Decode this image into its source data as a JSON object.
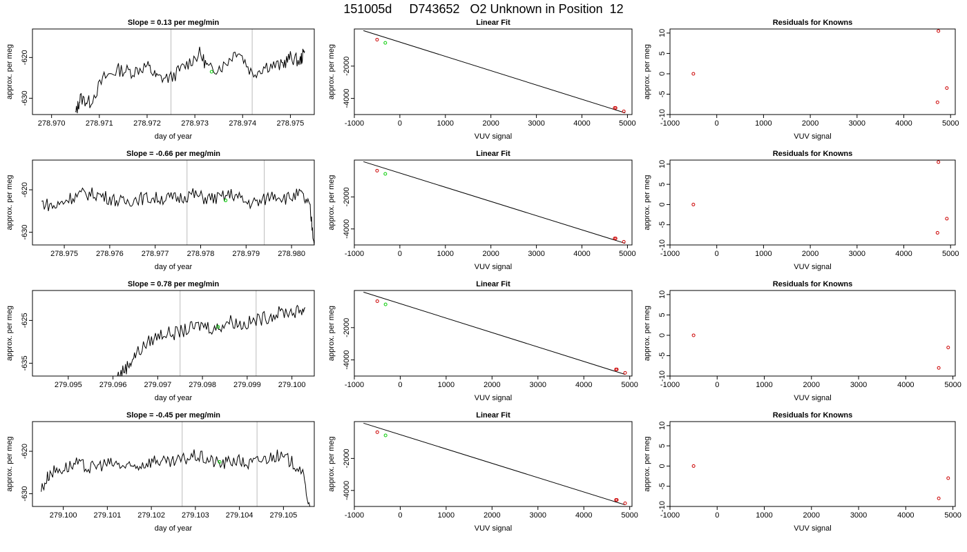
{
  "title": "151005d     D743652   O2 Unknown in Position  12",
  "labels": {
    "xlabel_time": "day of year",
    "ylabel": "approx. per meg",
    "linear_fit_title": "Linear Fit",
    "residuals_title": "Residuals for Knowns",
    "xlabel_vuv": "VUV signal"
  },
  "colors": {
    "trace": "#000000",
    "marker_known": "#cc0000",
    "marker_unknown": "#00cc00",
    "vline": "#bbbbbb",
    "frame": "#000000"
  },
  "chart_data": [
    {
      "type": "line",
      "title": "Slope =  0.13  per meg/min",
      "xlabel": "day of year",
      "ylabel": "approx. per meg",
      "xlim": [
        278.9696,
        278.9755
      ],
      "ylim": [
        -634,
        -613
      ],
      "xticks": [
        "278.970",
        "278.971",
        "278.972",
        "278.973",
        "278.974",
        "278.975"
      ],
      "xtick_values": [
        278.97,
        278.971,
        278.972,
        278.973,
        278.974,
        278.975
      ],
      "yticks": [
        "-630",
        "-620"
      ],
      "ytick_values": [
        -630,
        -620
      ],
      "vlines": [
        278.9725,
        278.9742
      ],
      "series": [
        {
          "x": [
            278.9705,
            278.9706,
            278.9708,
            278.9711,
            278.9714,
            278.9717,
            278.972,
            278.9722,
            278.9725,
            278.9728,
            278.9731,
            278.9733,
            278.9736,
            278.9739,
            278.9742,
            278.9745,
            278.9748,
            278.975,
            278.9752,
            278.9753
          ],
          "y": [
            -634,
            -630,
            -631,
            -625,
            -623,
            -623.5,
            -622,
            -625,
            -625,
            -622,
            -619,
            -623,
            -622,
            -618,
            -624,
            -622,
            -622,
            -620,
            -621,
            -618.5
          ]
        }
      ],
      "unknown_point": {
        "x": 278.97335,
        "y": -623.5
      }
    },
    {
      "type": "line",
      "title": "Slope =  -0.66  per meg/min",
      "xlabel": "day of year",
      "ylabel": "approx. per meg",
      "xlim": [
        278.9743,
        278.9805
      ],
      "ylim": [
        -633,
        -613
      ],
      "xticks": [
        "278.975",
        "278.976",
        "278.977",
        "278.978",
        "278.979",
        "278.980"
      ],
      "xtick_values": [
        278.975,
        278.976,
        278.977,
        278.978,
        278.979,
        278.98
      ],
      "yticks": [
        "-630",
        "-620"
      ],
      "ytick_values": [
        -630,
        -620
      ],
      "vlines": [
        278.9777,
        278.9794
      ],
      "series": [
        {
          "x": [
            278.9745,
            278.9748,
            278.9751,
            278.9754,
            278.9757,
            278.976,
            278.9763,
            278.9766,
            278.9769,
            278.9772,
            278.9775,
            278.9778,
            278.9781,
            278.9784,
            278.9787,
            278.979,
            278.9793,
            278.9796,
            278.9799,
            278.9802,
            278.9804,
            278.9805
          ],
          "y": [
            -623,
            -624,
            -622,
            -621,
            -621,
            -622,
            -623,
            -622,
            -622,
            -622,
            -622,
            -621,
            -622,
            -622,
            -621,
            -623,
            -623,
            -621,
            -622,
            -621,
            -624,
            -633
          ]
        }
      ],
      "unknown_point": {
        "x": 278.97855,
        "y": -622.5
      }
    },
    {
      "type": "line",
      "title": "Slope =  0.78  per meg/min",
      "xlabel": "day of year",
      "ylabel": "approx. per meg",
      "xlim": [
        279.0942,
        279.1005
      ],
      "ylim": [
        -638,
        -618
      ],
      "xticks": [
        "279.095",
        "279.096",
        "279.097",
        "279.098",
        "279.099",
        "279.100"
      ],
      "xtick_values": [
        279.095,
        279.096,
        279.097,
        279.098,
        279.099,
        279.1
      ],
      "yticks": [
        "-635",
        "-625"
      ],
      "ytick_values": [
        -635,
        -625
      ],
      "vlines": [
        279.0975,
        279.0992
      ],
      "series": [
        {
          "x": [
            279.0961,
            279.0963,
            279.0965,
            279.0968,
            279.0971,
            279.0974,
            279.0977,
            279.098,
            279.0983,
            279.0986,
            279.0989,
            279.0992,
            279.0995,
            279.0998,
            279.1001,
            279.1003
          ],
          "y": [
            -638,
            -636,
            -633,
            -630,
            -628,
            -628,
            -627,
            -626,
            -627,
            -625,
            -626,
            -625,
            -624,
            -623,
            -623,
            -622
          ]
        }
      ],
      "unknown_point": {
        "x": 279.09835,
        "y": -626.5
      }
    },
    {
      "type": "line",
      "title": "Slope =  -0.45  per meg/min",
      "xlabel": "day of year",
      "ylabel": "approx. per meg",
      "xlim": [
        279.0993,
        279.1057
      ],
      "ylim": [
        -633,
        -613
      ],
      "xticks": [
        "279.100",
        "279.101",
        "279.102",
        "279.103",
        "279.104",
        "279.105"
      ],
      "xtick_values": [
        279.1,
        279.101,
        279.102,
        279.103,
        279.104,
        279.105
      ],
      "yticks": [
        "-630",
        "-620"
      ],
      "ytick_values": [
        -630,
        -620
      ],
      "vlines": [
        279.1027,
        279.1044
      ],
      "series": [
        {
          "x": [
            279.0995,
            279.0997,
            279.1,
            279.1003,
            279.1006,
            279.1009,
            279.1012,
            279.1015,
            279.1018,
            279.1021,
            279.1024,
            279.1027,
            279.103,
            279.1033,
            279.1036,
            279.1039,
            279.1042,
            279.1045,
            279.1048,
            279.1051,
            279.1054,
            279.1056
          ],
          "y": [
            -629,
            -625,
            -624,
            -623,
            -624,
            -623,
            -623,
            -624,
            -623,
            -622,
            -623,
            -622,
            -621,
            -622,
            -623,
            -622,
            -623,
            -622,
            -621,
            -622,
            -624,
            -633
          ]
        }
      ],
      "unknown_point": {
        "x": 279.10355,
        "y": -622.5
      }
    },
    {
      "type": "scatter",
      "title": "Linear Fit",
      "xlabel": "VUV signal",
      "ylabel": "approx. per meg",
      "xlim": [
        -1000,
        5100
      ],
      "ylim": [
        -5000,
        300
      ],
      "xticks": [
        "-1000",
        "0",
        "1000",
        "2000",
        "3000",
        "4000",
        "5000"
      ],
      "xtick_values": [
        -1000,
        0,
        1000,
        2000,
        3000,
        4000,
        5000
      ],
      "yticks": [
        "-4000",
        "-2000"
      ],
      "ytick_values": [
        -4000,
        -2000
      ],
      "fit_line": {
        "x": [
          -800,
          4950
        ],
        "y": [
          200,
          -4900
        ]
      },
      "known_points": {
        "x": [
          -500,
          4720,
          4740,
          4920
        ],
        "y": [
          -360,
          -4590,
          -4590,
          -4800
        ]
      },
      "unknown_points": {
        "x": [
          -320
        ],
        "y": [
          -560
        ]
      }
    },
    {
      "type": "scatter",
      "title": "Linear Fit",
      "xlabel": "VUV signal",
      "ylabel": "approx. per meg",
      "xlim": [
        -1000,
        5100
      ],
      "ylim": [
        -5000,
        300
      ],
      "xticks": [
        "-1000",
        "0",
        "1000",
        "2000",
        "3000",
        "4000",
        "5000"
      ],
      "xtick_values": [
        -1000,
        0,
        1000,
        2000,
        3000,
        4000,
        5000
      ],
      "yticks": [
        "-4000",
        "-2000"
      ],
      "ytick_values": [
        -4000,
        -2000
      ],
      "fit_line": {
        "x": [
          -800,
          4950
        ],
        "y": [
          200,
          -4900
        ]
      },
      "known_points": {
        "x": [
          -500,
          4720,
          4740,
          4920
        ],
        "y": [
          -360,
          -4590,
          -4590,
          -4800
        ]
      },
      "unknown_points": {
        "x": [
          -320
        ],
        "y": [
          -560
        ]
      }
    },
    {
      "type": "scatter",
      "title": "Linear Fit",
      "xlabel": "VUV signal",
      "ylabel": "approx. per meg",
      "xlim": [
        -1000,
        5050
      ],
      "ylim": [
        -5000,
        300
      ],
      "xticks": [
        "-1000",
        "0",
        "1000",
        "2000",
        "3000",
        "4000",
        "5000"
      ],
      "xtick_values": [
        -1000,
        0,
        1000,
        2000,
        3000,
        4000,
        5000
      ],
      "yticks": [
        "-4000",
        "-2000"
      ],
      "ytick_values": [
        -4000,
        -2000
      ],
      "fit_line": {
        "x": [
          -800,
          4900
        ],
        "y": [
          200,
          -4900
        ]
      },
      "known_points": {
        "x": [
          -500,
          4700,
          4720,
          4900
        ],
        "y": [
          -360,
          -4590,
          -4590,
          -4800
        ]
      },
      "unknown_points": {
        "x": [
          -320
        ],
        "y": [
          -560
        ]
      }
    },
    {
      "type": "scatter",
      "title": "Linear Fit",
      "xlabel": "VUV signal",
      "ylabel": "approx. per meg",
      "xlim": [
        -1000,
        5050
      ],
      "ylim": [
        -5000,
        300
      ],
      "xticks": [
        "-1000",
        "0",
        "1000",
        "2000",
        "3000",
        "4000",
        "5000"
      ],
      "xtick_values": [
        -1000,
        0,
        1000,
        2000,
        3000,
        4000,
        5000
      ],
      "yticks": [
        "-4000",
        "-2000"
      ],
      "ytick_values": [
        -4000,
        -2000
      ],
      "fit_line": {
        "x": [
          -800,
          4900
        ],
        "y": [
          200,
          -4900
        ]
      },
      "known_points": {
        "x": [
          -500,
          4700,
          4720,
          4900
        ],
        "y": [
          -360,
          -4590,
          -4590,
          -4800
        ]
      },
      "unknown_points": {
        "x": [
          -320
        ],
        "y": [
          -560
        ]
      }
    },
    {
      "type": "scatter",
      "title": "Residuals for Knowns",
      "xlabel": "VUV signal",
      "ylabel": "approx. per meg",
      "xlim": [
        -1000,
        5100
      ],
      "ylim": [
        -10,
        11
      ],
      "xticks": [
        "-1000",
        "0",
        "1000",
        "2000",
        "3000",
        "4000",
        "5000"
      ],
      "xtick_values": [
        -1000,
        0,
        1000,
        2000,
        3000,
        4000,
        5000
      ],
      "yticks": [
        "-10",
        "-5",
        "0",
        "5",
        "10"
      ],
      "ytick_values": [
        -10,
        -5,
        0,
        5,
        10
      ],
      "known_points": {
        "x": [
          -500,
          4720,
          4740,
          4920
        ],
        "y": [
          0,
          -7,
          10.5,
          -3.5
        ]
      }
    },
    {
      "type": "scatter",
      "title": "Residuals for Knowns",
      "xlabel": "VUV signal",
      "ylabel": "approx. per meg",
      "xlim": [
        -1000,
        5100
      ],
      "ylim": [
        -10,
        11
      ],
      "xticks": [
        "-1000",
        "0",
        "1000",
        "2000",
        "3000",
        "4000",
        "5000"
      ],
      "xtick_values": [
        -1000,
        0,
        1000,
        2000,
        3000,
        4000,
        5000
      ],
      "yticks": [
        "-10",
        "-5",
        "0",
        "5",
        "10"
      ],
      "ytick_values": [
        -10,
        -5,
        0,
        5,
        10
      ],
      "known_points": {
        "x": [
          -500,
          4720,
          4740,
          4920
        ],
        "y": [
          0,
          -7,
          10.5,
          -3.5
        ]
      }
    },
    {
      "type": "scatter",
      "title": "Residuals for Knowns",
      "xlabel": "VUV signal",
      "ylabel": "approx. per meg",
      "xlim": [
        -1000,
        5050
      ],
      "ylim": [
        -10,
        11
      ],
      "xticks": [
        "-1000",
        "0",
        "1000",
        "2000",
        "3000",
        "4000",
        "5000"
      ],
      "xtick_values": [
        -1000,
        0,
        1000,
        2000,
        3000,
        4000,
        5000
      ],
      "yticks": [
        "-10",
        "-5",
        "0",
        "5",
        "10"
      ],
      "ytick_values": [
        -10,
        -5,
        0,
        5,
        10
      ],
      "known_points": {
        "x": [
          -500,
          4700,
          4900
        ],
        "y": [
          0,
          -8,
          -3
        ]
      }
    },
    {
      "type": "scatter",
      "title": "Residuals for Knowns",
      "xlabel": "VUV signal",
      "ylabel": "approx. per meg",
      "xlim": [
        -1000,
        5050
      ],
      "ylim": [
        -10,
        11
      ],
      "xticks": [
        "-1000",
        "0",
        "1000",
        "2000",
        "3000",
        "4000",
        "5000"
      ],
      "xtick_values": [
        -1000,
        0,
        1000,
        2000,
        3000,
        4000,
        5000
      ],
      "yticks": [
        "-10",
        "-5",
        "0",
        "5",
        "10"
      ],
      "ytick_values": [
        -10,
        -5,
        0,
        5,
        10
      ],
      "known_points": {
        "x": [
          -500,
          4700,
          4900
        ],
        "y": [
          0,
          -8,
          -3
        ]
      }
    }
  ]
}
